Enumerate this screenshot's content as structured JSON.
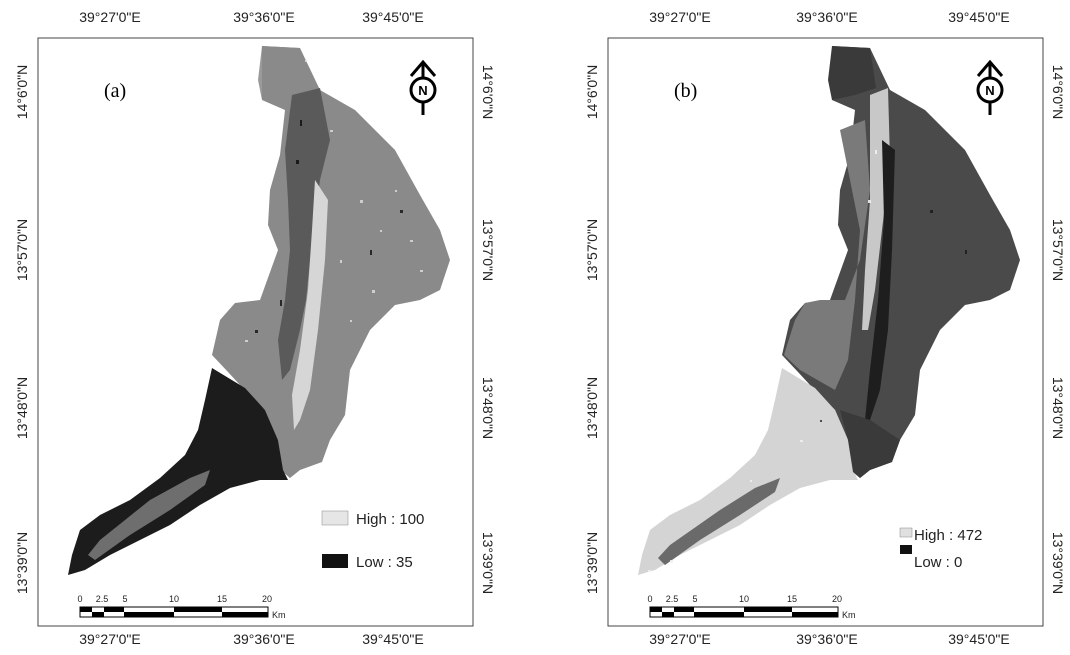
{
  "figure": {
    "panels": [
      {
        "id": "a",
        "label": "(a)",
        "top_ticks": [
          "39°27'0\"E",
          "39°36'0\"E",
          "39°45'0\"E"
        ],
        "bottom_ticks": [
          "39°27'0\"E",
          "39°36'0\"E",
          "39°45'0\"E"
        ],
        "left_ticks": [
          "14°6'0\"N",
          "13°57'0\"N",
          "13°48'0\"N",
          "13°39'0\"N"
        ],
        "right_ticks": [
          "14°6'0\"N",
          "13°57'0\"N",
          "13°48'0\"N",
          "13°39'0\"N"
        ],
        "legend": {
          "high": "High : 100",
          "low": "Low : 35"
        },
        "scale_labels": [
          "0",
          "2.5",
          "5",
          "10",
          "15",
          "20"
        ],
        "scale_unit": "Km",
        "north_letter": "N",
        "colors": {
          "high": "#e6e6e6",
          "low": "#101010",
          "mid": "#8f8f8f",
          "dark": "#2a2a2a",
          "light": "#c8c8c8"
        }
      },
      {
        "id": "b",
        "label": "(b)",
        "top_ticks": [
          "39°27'0\"E",
          "39°36'0\"E",
          "39°45'0\"E"
        ],
        "bottom_ticks": [
          "39°27'0\"E",
          "39°36'0\"E",
          "39°45'0\"E"
        ],
        "left_ticks": [
          "14°6'0\"N",
          "13°57'0\"N",
          "13°48'0\"N",
          "13°39'0\"N"
        ],
        "right_ticks": [
          "14°6'0\"N",
          "13°57'0\"N",
          "13°48'0\"N",
          "13°39'0\"N"
        ],
        "legend": {
          "high": "High : 472",
          "low": "Low : 0"
        },
        "scale_labels": [
          "0",
          "2.5",
          "5",
          "10",
          "15",
          "20"
        ],
        "scale_unit": "Km",
        "north_letter": "N",
        "colors": {
          "high": "#e6e6e6",
          "low": "#101010",
          "mid": "#6e6e6e",
          "dark": "#3a3a3a",
          "light": "#d2d2d2"
        }
      }
    ]
  }
}
